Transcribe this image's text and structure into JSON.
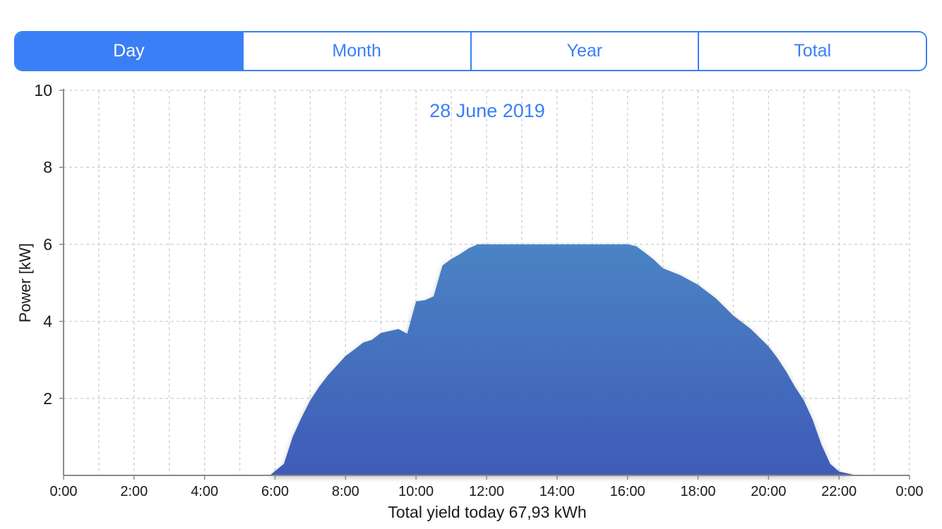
{
  "tabs": [
    {
      "label": "Day",
      "active": true
    },
    {
      "label": "Month",
      "active": false
    },
    {
      "label": "Year",
      "active": false
    },
    {
      "label": "Total",
      "active": false
    }
  ],
  "colors": {
    "accent": "#3a7ff6",
    "area_top": "#4a84c4",
    "area_bottom": "#3f5bb8"
  },
  "footer_text": "Total yield today 67,93 kWh",
  "chart_data": {
    "type": "area",
    "title": "28 June 2019",
    "xlabel": "",
    "ylabel": "Power [kW]",
    "xlim": [
      0,
      24
    ],
    "ylim": [
      0,
      10
    ],
    "x_ticks": [
      "0:00",
      "2:00",
      "4:00",
      "6:00",
      "8:00",
      "10:00",
      "12:00",
      "14:00",
      "16:00",
      "18:00",
      "20:00",
      "22:00",
      "0:00"
    ],
    "y_ticks": [
      "2",
      "4",
      "6",
      "8",
      "10"
    ],
    "grid": true,
    "series": [
      {
        "x": [
          5.85,
          6.25,
          6.5,
          6.75,
          7.0,
          7.25,
          7.5,
          7.75,
          8.0,
          8.25,
          8.5,
          8.75,
          9.0,
          9.25,
          9.5,
          9.75,
          10.0,
          10.25,
          10.5,
          10.75,
          11.0,
          11.25,
          11.5,
          11.75,
          12.0,
          13.0,
          14.0,
          15.0,
          16.0,
          16.25,
          16.5,
          16.75,
          17.0,
          17.5,
          18.0,
          18.5,
          19.0,
          19.5,
          20.0,
          20.25,
          20.5,
          20.75,
          21.0,
          21.25,
          21.5,
          21.75,
          22.0,
          22.25,
          22.5
        ],
        "y": [
          0.0,
          0.3,
          1.0,
          1.5,
          1.95,
          2.3,
          2.6,
          2.85,
          3.1,
          3.27,
          3.45,
          3.52,
          3.7,
          3.75,
          3.8,
          3.68,
          4.52,
          4.55,
          4.65,
          5.45,
          5.62,
          5.75,
          5.9,
          6.0,
          6.0,
          6.0,
          6.0,
          6.0,
          6.0,
          5.95,
          5.78,
          5.6,
          5.38,
          5.2,
          4.95,
          4.6,
          4.15,
          3.8,
          3.35,
          3.05,
          2.7,
          2.3,
          1.95,
          1.45,
          0.8,
          0.3,
          0.1,
          0.05,
          0.0
        ]
      }
    ]
  }
}
